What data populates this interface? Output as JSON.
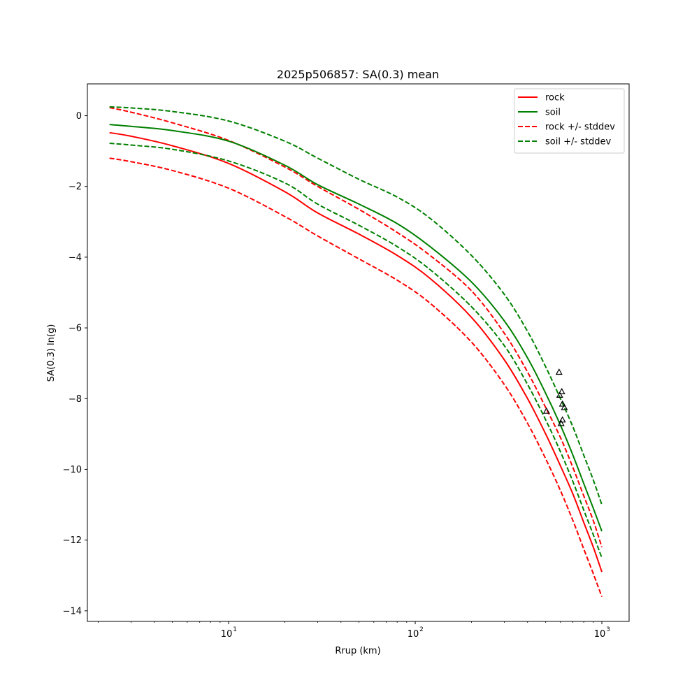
{
  "chart_data": {
    "type": "line",
    "title": "2025p506857: SA(0.3) mean",
    "xlabel": "Rrup (km)",
    "ylabel": "SA(0.3) ln(g)",
    "xscale": "log",
    "xlim": [
      1.75,
      1400
    ],
    "ylim": [
      -14.3,
      0.9
    ],
    "x_ticks": [
      {
        "value": 10,
        "base": "10",
        "exp": "1"
      },
      {
        "value": 100,
        "base": "10",
        "exp": "2"
      },
      {
        "value": 1000,
        "base": "10",
        "exp": "3"
      }
    ],
    "y_ticks": [
      {
        "value": 0,
        "label": "0"
      },
      {
        "value": -2,
        "label": "−2"
      },
      {
        "value": -4,
        "label": "−4"
      },
      {
        "value": -6,
        "label": "−6"
      },
      {
        "value": -8,
        "label": "−8"
      },
      {
        "value": -10,
        "label": "−10"
      },
      {
        "value": -12,
        "label": "−12"
      },
      {
        "value": -14,
        "label": "−14"
      }
    ],
    "grid": false,
    "legend_position": "top-right",
    "legend": [
      {
        "label": "rock",
        "color": "#ff0000",
        "dash": false
      },
      {
        "label": "soil",
        "color": "#008000",
        "dash": false
      },
      {
        "label": "rock +/- stddev",
        "color": "#ff0000",
        "dash": true
      },
      {
        "label": "soil +/- stddev",
        "color": "#008000",
        "dash": true
      }
    ],
    "x": [
      2.3,
      3,
      5,
      10,
      20,
      30,
      50,
      80,
      120,
      200,
      300,
      400,
      500,
      600,
      700,
      800,
      900,
      1000
    ],
    "series": [
      {
        "key": "rock",
        "color": "#ff0000",
        "dash": false,
        "values": [
          -0.48,
          -0.58,
          -0.85,
          -1.35,
          -2.15,
          -2.75,
          -3.35,
          -3.95,
          -4.6,
          -5.7,
          -6.9,
          -8.0,
          -9.0,
          -9.9,
          -10.7,
          -11.5,
          -12.2,
          -12.9
        ]
      },
      {
        "key": "rock-plus",
        "color": "#ff0000",
        "dash": true,
        "values": [
          0.23,
          0.1,
          -0.2,
          -0.7,
          -1.45,
          -2.0,
          -2.65,
          -3.3,
          -3.95,
          -4.95,
          -6.15,
          -7.25,
          -8.25,
          -9.1,
          -9.95,
          -10.75,
          -11.45,
          -12.2
        ]
      },
      {
        "key": "rock-minus",
        "color": "#ff0000",
        "dash": true,
        "values": [
          -1.2,
          -1.3,
          -1.55,
          -2.05,
          -2.85,
          -3.4,
          -4.05,
          -4.65,
          -5.3,
          -6.4,
          -7.6,
          -8.7,
          -9.7,
          -10.6,
          -11.45,
          -12.25,
          -12.95,
          -13.6
        ]
      },
      {
        "key": "soil",
        "color": "#008000",
        "dash": false,
        "values": [
          -0.25,
          -0.3,
          -0.42,
          -0.72,
          -1.4,
          -1.95,
          -2.5,
          -3.05,
          -3.7,
          -4.7,
          -5.8,
          -6.85,
          -7.85,
          -8.75,
          -9.6,
          -10.4,
          -11.1,
          -11.75
        ]
      },
      {
        "key": "soil-plus",
        "color": "#008000",
        "dash": true,
        "values": [
          0.25,
          0.22,
          0.12,
          -0.15,
          -0.72,
          -1.2,
          -1.8,
          -2.3,
          -2.9,
          -3.95,
          -5.05,
          -6.1,
          -7.1,
          -8.0,
          -8.8,
          -9.6,
          -10.3,
          -11.0
        ]
      },
      {
        "key": "soil-minus",
        "color": "#008000",
        "dash": true,
        "values": [
          -0.78,
          -0.83,
          -0.95,
          -1.28,
          -1.9,
          -2.5,
          -3.1,
          -3.7,
          -4.35,
          -5.4,
          -6.5,
          -7.6,
          -8.6,
          -9.5,
          -10.35,
          -11.15,
          -11.85,
          -12.5
        ]
      }
    ],
    "observations": {
      "marker": "triangle",
      "color": "#000000",
      "points": [
        {
          "x": 590,
          "y": -7.25
        },
        {
          "x": 610,
          "y": -7.8
        },
        {
          "x": 595,
          "y": -7.9
        },
        {
          "x": 615,
          "y": -8.15
        },
        {
          "x": 630,
          "y": -8.25
        },
        {
          "x": 505,
          "y": -8.35
        },
        {
          "x": 615,
          "y": -8.6
        },
        {
          "x": 605,
          "y": -8.7
        }
      ]
    }
  }
}
